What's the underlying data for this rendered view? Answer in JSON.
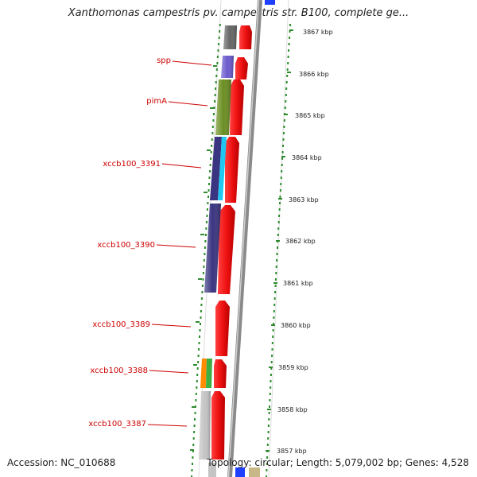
{
  "title": "Xanthomonas campestris pv. campestris str. B100, complete ge...",
  "accession": "Accession: NC_010688",
  "summary": "Topology: circular; Length: 5,079,002 bp; Genes: 4,528",
  "scale_labels": [
    "3867 kbp",
    "3866 kbp",
    "3865 kbp",
    "3864 kbp",
    "3863 kbp",
    "3862 kbp",
    "3861 kbp",
    "3860 kbp",
    "3859 kbp",
    "3858 kbp",
    "3857 kbp"
  ],
  "gene_labels": [
    "spp",
    "pimA",
    "xccb100_3391",
    "xccb100_3390",
    "xccb100_3389",
    "xccb100_3388",
    "xccb100_3387"
  ],
  "colors": {
    "cds": "#ee1111",
    "backbone": "#8a8a8a",
    "tick": "#2e8b2e",
    "label": "#cc0000",
    "purple": "#6a5acd",
    "olive": "#6b8e23",
    "navy": "#3a3580",
    "cyan": "#1ec8f0",
    "orange": "#ff8c00",
    "green": "#3cb043",
    "grey": "#c4c4c4"
  }
}
